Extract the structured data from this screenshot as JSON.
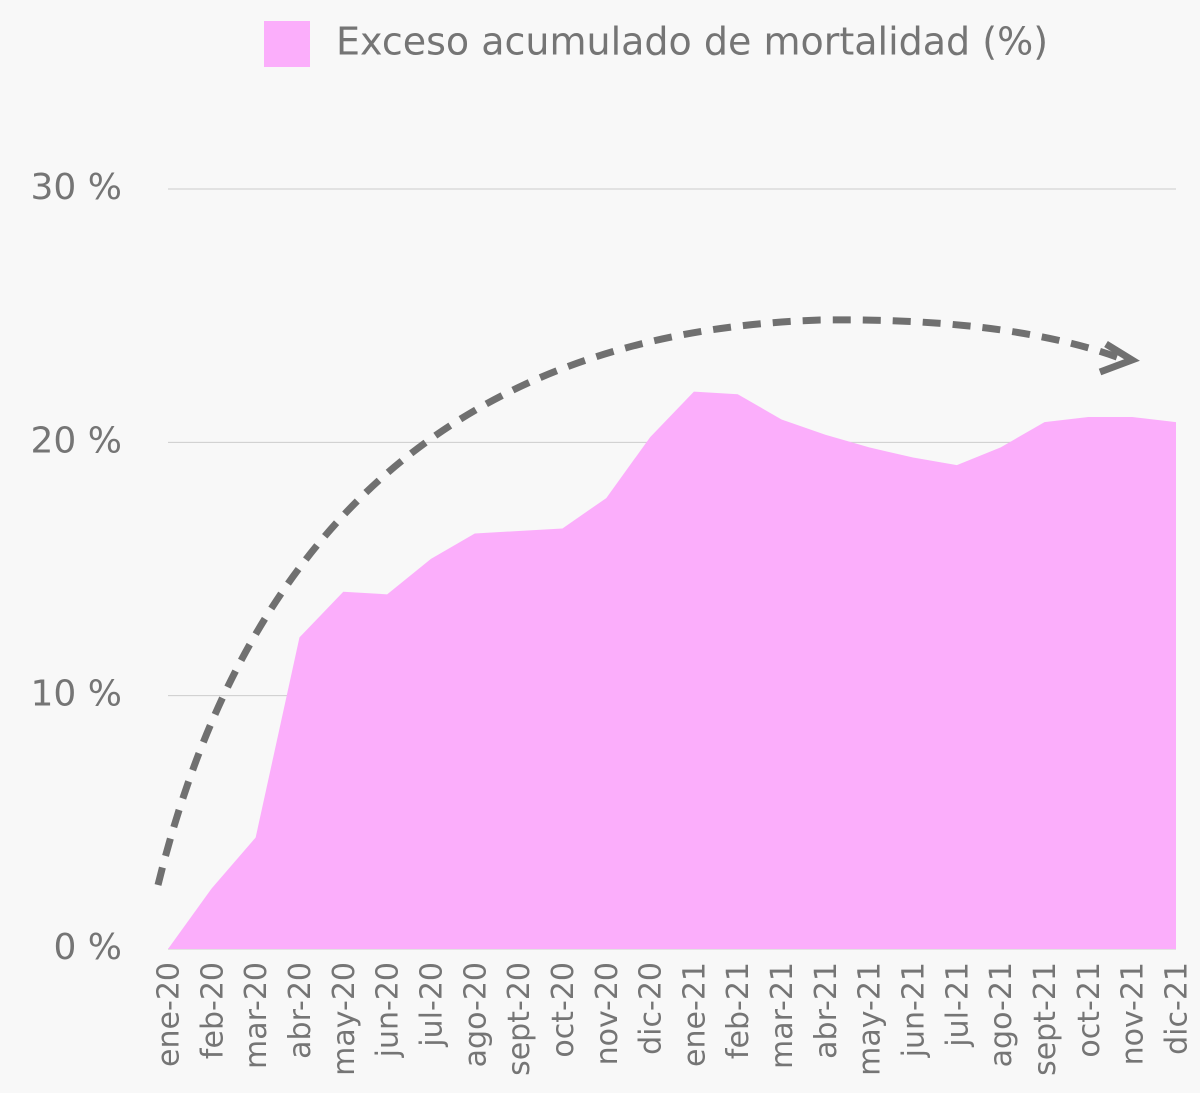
{
  "chart_data": {
    "type": "area",
    "categories": [
      "ene-20",
      "feb-20",
      "mar-20",
      "abr-20",
      "may-20",
      "jun-20",
      "jul-20",
      "ago-20",
      "sept-20",
      "oct-20",
      "nov-20",
      "dic-20",
      "ene-21",
      "feb-21",
      "mar-21",
      "abr-21",
      "may-21",
      "jun-21",
      "jul-21",
      "ago-21",
      "sept-21",
      "oct-21",
      "nov-21",
      "dic-21"
    ],
    "series": [
      {
        "name": "Exceso acumulado de mortalidad (%)",
        "color": "#fbaefb",
        "values": [
          0,
          2.4,
          4.4,
          12.3,
          14.1,
          14.0,
          15.4,
          16.4,
          16.5,
          16.6,
          17.8,
          20.2,
          22.0,
          21.9,
          20.9,
          20.3,
          19.8,
          19.4,
          19.1,
          19.8,
          20.8,
          21.0,
          21.0,
          20.8
        ]
      }
    ],
    "ylim": [
      0,
      30
    ],
    "yticks": [
      {
        "value": 0,
        "label": "0 %"
      },
      {
        "value": 10,
        "label": "10 %"
      },
      {
        "value": 20,
        "label": "20 %"
      },
      {
        "value": 30,
        "label": "30 %"
      }
    ],
    "grid": true,
    "legend": "top"
  }
}
